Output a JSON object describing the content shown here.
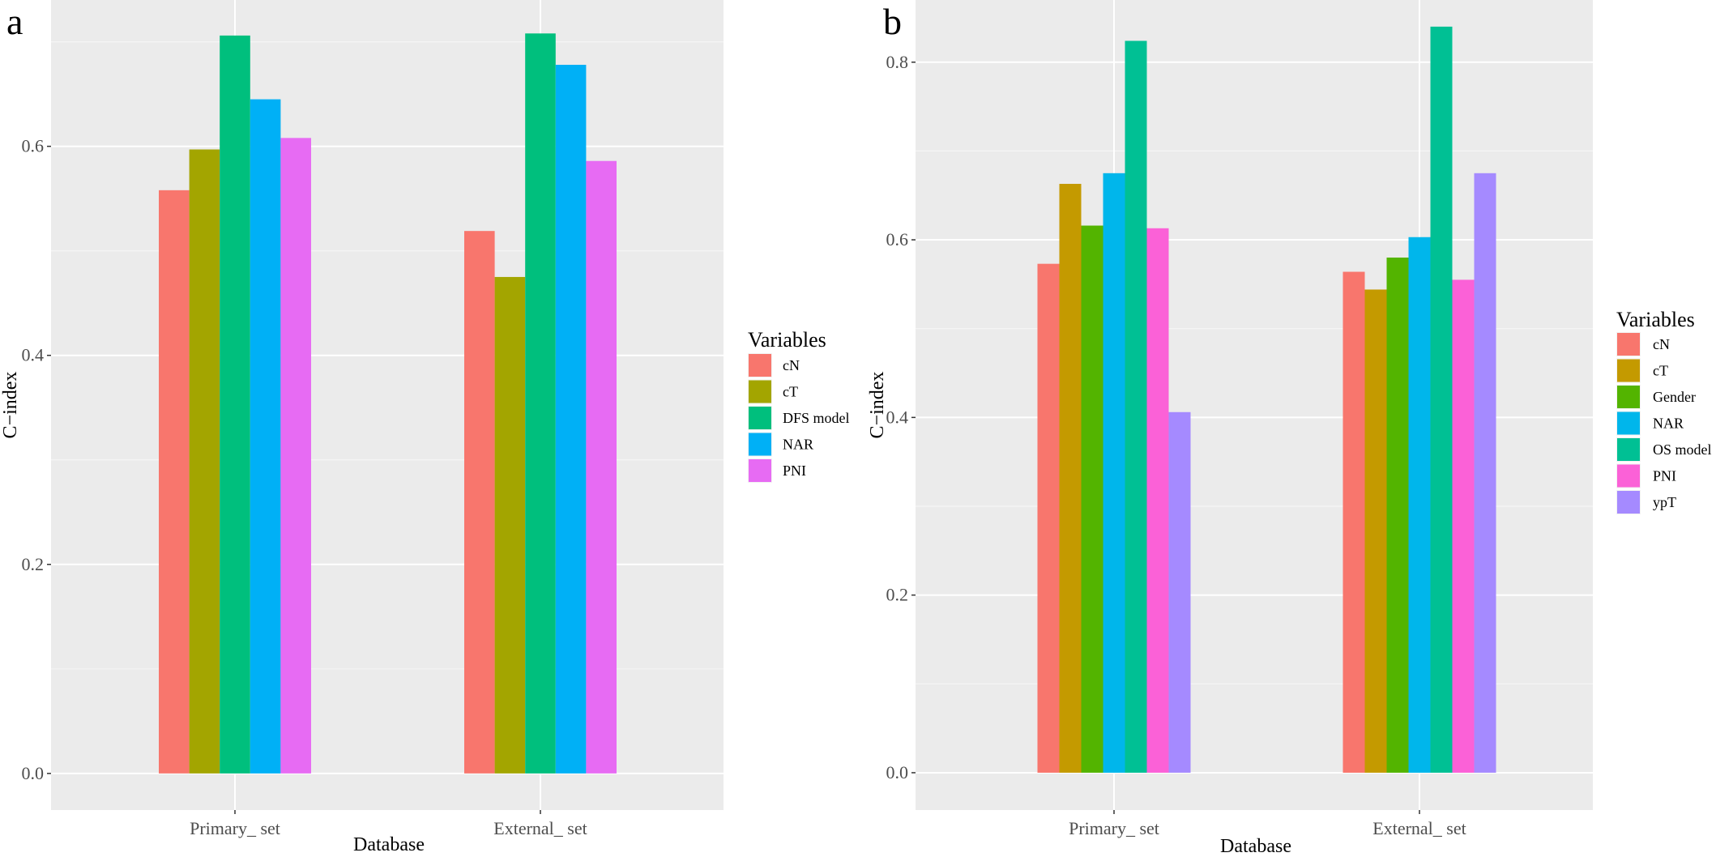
{
  "chart_data": [
    {
      "type": "bar",
      "panel_label": "a",
      "categories": [
        "Primary_ set",
        "External_ set"
      ],
      "xlabel": "Database",
      "ylabel": "C−index",
      "ylim": [
        -0.035,
        0.74
      ],
      "yticks": [
        0.0,
        0.2,
        0.4,
        0.6
      ],
      "ytick_labels": [
        "0.0",
        "0.2",
        "0.4",
        "0.6"
      ],
      "legend_title": "Variables",
      "legend_position": "right",
      "grid": true,
      "series": [
        {
          "name": "cN",
          "color": "#F8766D",
          "values": [
            0.558,
            0.519
          ]
        },
        {
          "name": "cT",
          "color": "#A3A500",
          "values": [
            0.597,
            0.475
          ]
        },
        {
          "name": "DFS model",
          "color": "#00BF7D",
          "values": [
            0.706,
            0.708
          ]
        },
        {
          "name": "NAR",
          "color": "#00B0F6",
          "values": [
            0.645,
            0.678
          ]
        },
        {
          "name": "PNI",
          "color": "#E76BF3",
          "values": [
            0.608,
            0.586
          ]
        }
      ]
    },
    {
      "type": "bar",
      "panel_label": "b",
      "categories": [
        "Primary_ set",
        "External_ set"
      ],
      "xlabel": "Database",
      "ylabel": "C−index",
      "ylim": [
        -0.042,
        0.87
      ],
      "yticks": [
        0.0,
        0.2,
        0.4,
        0.6,
        0.8
      ],
      "ytick_labels": [
        "0.0",
        "0.2",
        "0.4",
        "0.6",
        "0.8"
      ],
      "legend_title": "Variables",
      "legend_position": "right",
      "grid": true,
      "series": [
        {
          "name": "cN",
          "color": "#F8766D",
          "values": [
            0.573,
            0.564
          ]
        },
        {
          "name": "cT",
          "color": "#C49A00",
          "values": [
            0.663,
            0.544
          ]
        },
        {
          "name": "Gender",
          "color": "#53B400",
          "values": [
            0.616,
            0.58
          ]
        },
        {
          "name": "NAR",
          "color": "#00B6EB",
          "values": [
            0.675,
            0.603
          ]
        },
        {
          "name": "OS model",
          "color": "#00C094",
          "values": [
            0.824,
            0.84
          ]
        },
        {
          "name": "PNI",
          "color": "#FB61D7",
          "values": [
            0.613,
            0.555
          ]
        },
        {
          "name": "ypT",
          "color": "#A58AFF",
          "values": [
            0.406,
            0.675
          ]
        }
      ]
    }
  ]
}
